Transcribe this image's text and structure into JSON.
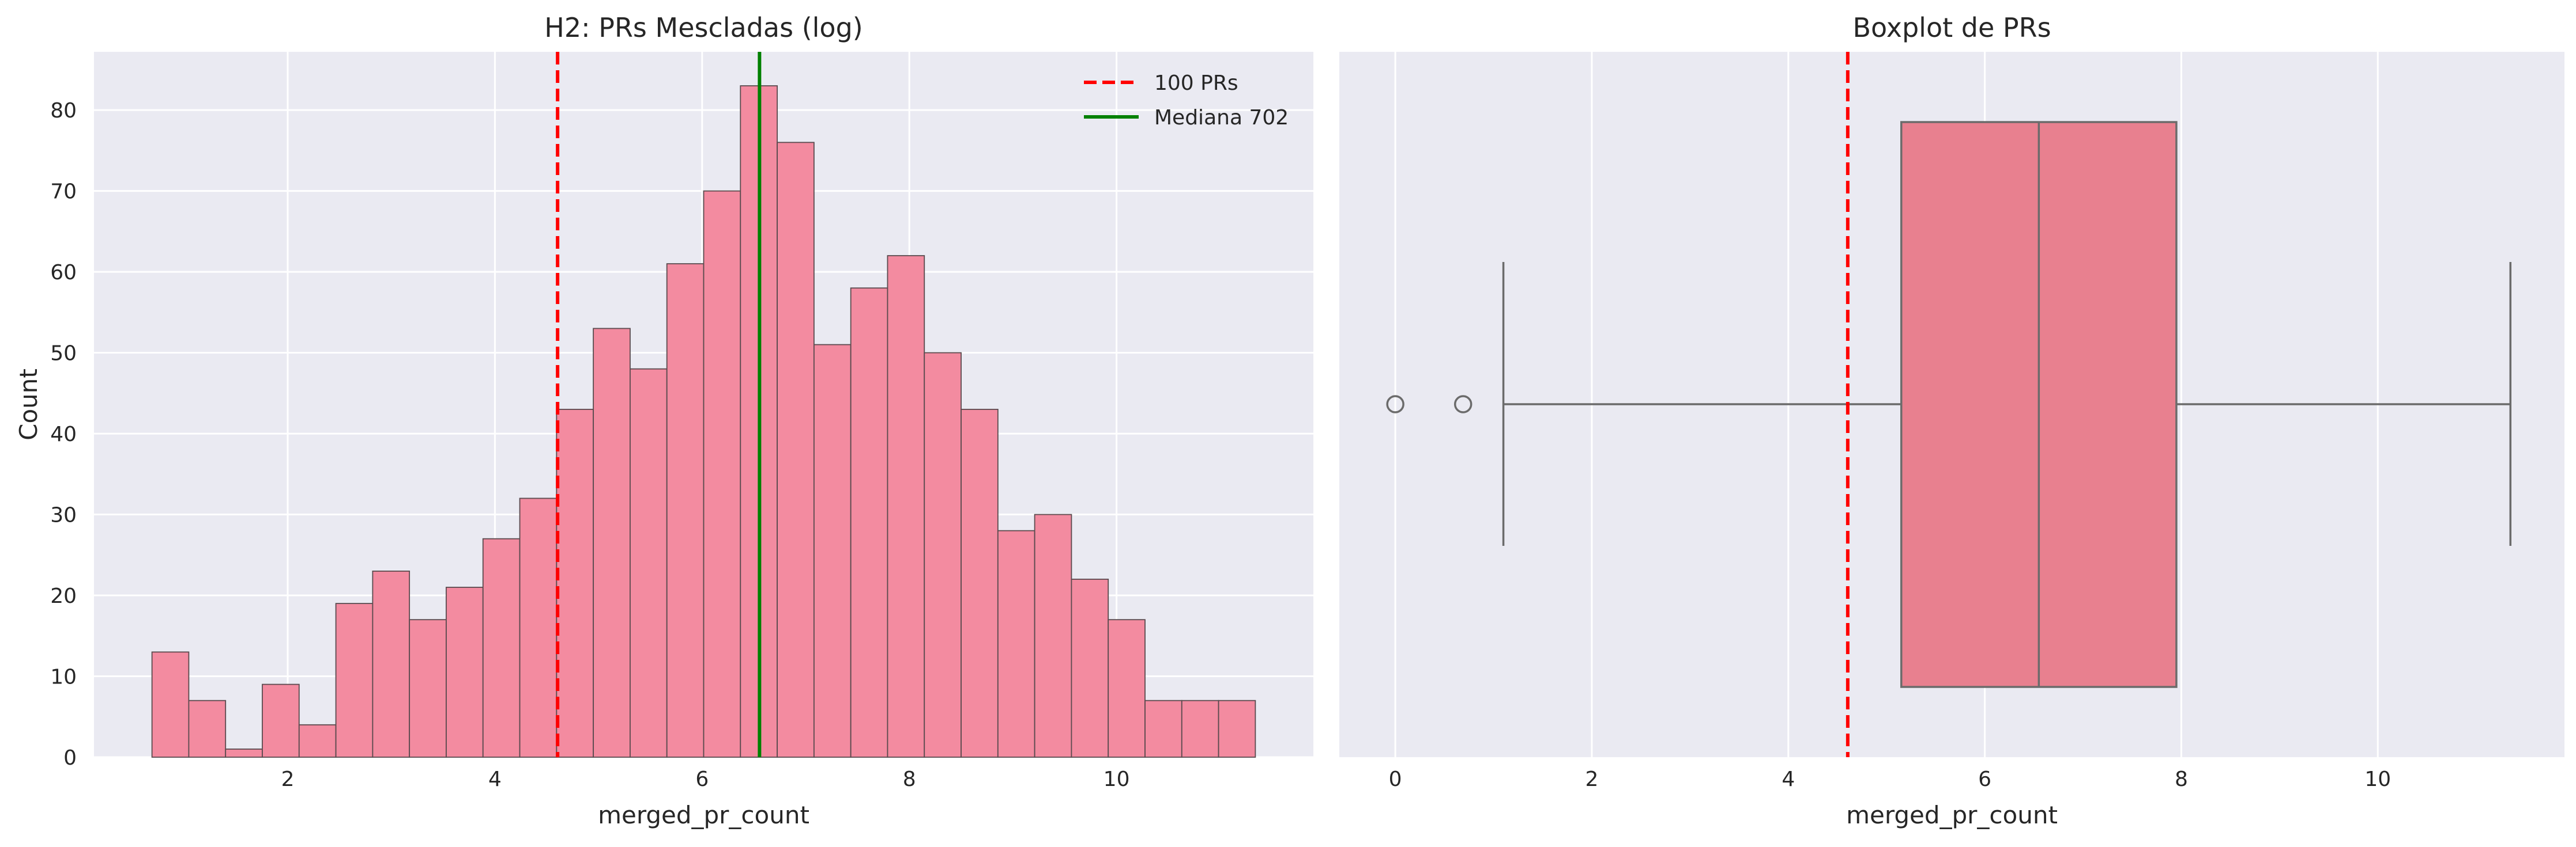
{
  "chart_data": [
    {
      "type": "bar",
      "title": "H2: PRs Mescladas (log)",
      "xlabel": "merged_pr_count",
      "ylabel": "Count",
      "xlim": [
        0.13,
        11.9
      ],
      "ylim": [
        0,
        87.2
      ],
      "xticks": [
        2,
        4,
        6,
        8,
        10
      ],
      "yticks": [
        0,
        10,
        20,
        30,
        40,
        50,
        60,
        70,
        80
      ],
      "bin_start": 0.69,
      "bin_width": 0.355,
      "values": [
        13,
        7,
        1,
        9,
        4,
        19,
        23,
        17,
        21,
        27,
        32,
        43,
        53,
        48,
        61,
        70,
        83,
        76,
        51,
        58,
        62,
        50,
        43,
        28,
        30,
        22,
        17,
        7,
        7,
        7
      ],
      "bar_color": "#f38ba0",
      "grid": true,
      "legend_position": "top-right",
      "reference_lines": [
        {
          "label": "100 PRs",
          "x": 4.605,
          "color": "#ff0000",
          "style": "dashed"
        },
        {
          "label": "Mediana 702",
          "x": 6.554,
          "color": "#008000",
          "style": "solid"
        }
      ]
    },
    {
      "type": "boxplot",
      "title": "Boxplot de PRs",
      "xlabel": "merged_pr_count",
      "xlim": [
        -0.57,
        11.9
      ],
      "xticks": [
        0,
        2,
        4,
        6,
        8,
        10
      ],
      "box": {
        "whisker_low": 1.1,
        "q1": 5.15,
        "median": 6.55,
        "q3": 7.95,
        "whisker_high": 11.35
      },
      "outliers": [
        0,
        0.69
      ],
      "box_color": "#e8808f",
      "grid": true,
      "reference_lines": [
        {
          "x": 4.605,
          "color": "#ff0000",
          "style": "dashed"
        }
      ]
    }
  ]
}
